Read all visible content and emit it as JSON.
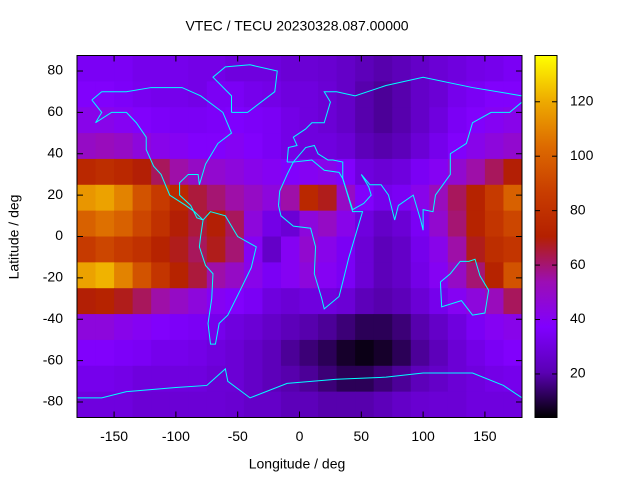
{
  "chart_data": {
    "type": "heatmap",
    "title": "VTEC / TECU 20230328.087.00000",
    "xlabel": "Longitude / deg",
    "ylabel": "Latitude / deg",
    "xlim": [
      -180,
      180
    ],
    "ylim": [
      -87.5,
      87.5
    ],
    "xticks": [
      -150,
      -100,
      -50,
      0,
      50,
      100,
      150
    ],
    "yticks": [
      -80,
      -60,
      -40,
      -20,
      0,
      20,
      40,
      60,
      80
    ],
    "clim": [
      4,
      137
    ],
    "cticks": [
      20,
      40,
      60,
      80,
      100,
      120
    ],
    "colormap": [
      "#000000",
      "#5a00b4",
      "#8000ff",
      "#9c0eb4",
      "#b42000",
      "#c93e00",
      "#dd6b00",
      "#eeab00",
      "#ffff00"
    ],
    "x": [
      -172.5,
      -157.5,
      -142.5,
      -127.5,
      -112.5,
      -97.5,
      -82.5,
      -67.5,
      -52.5,
      -37.5,
      -22.5,
      -7.5,
      7.5,
      22.5,
      37.5,
      52.5,
      67.5,
      82.5,
      97.5,
      112.5,
      127.5,
      142.5,
      157.5,
      172.5
    ],
    "y": [
      81.25,
      68.75,
      56.25,
      43.75,
      31.25,
      18.75,
      6.25,
      -6.25,
      -18.75,
      -31.25,
      -43.75,
      -56.25,
      -68.75,
      -81.25
    ],
    "z": [
      [
        35,
        35,
        35,
        33,
        33,
        33,
        32,
        32,
        30,
        30,
        30,
        28,
        28,
        27,
        25,
        22,
        20,
        22,
        25,
        28,
        30,
        32,
        33,
        35
      ],
      [
        38,
        38,
        36,
        34,
        33,
        33,
        32,
        35,
        35,
        33,
        32,
        30,
        30,
        28,
        25,
        20,
        18,
        20,
        25,
        28,
        33,
        35,
        38,
        38
      ],
      [
        42,
        42,
        40,
        38,
        36,
        35,
        35,
        36,
        37,
        36,
        35,
        32,
        30,
        28,
        25,
        20,
        18,
        20,
        25,
        30,
        35,
        38,
        40,
        42
      ],
      [
        50,
        52,
        50,
        45,
        42,
        40,
        38,
        38,
        40,
        38,
        35,
        32,
        30,
        30,
        28,
        22,
        20,
        22,
        28,
        33,
        38,
        42,
        45,
        48
      ],
      [
        75,
        78,
        75,
        70,
        62,
        55,
        50,
        48,
        45,
        42,
        40,
        38,
        40,
        42,
        38,
        30,
        28,
        30,
        35,
        40,
        48,
        55,
        62,
        70
      ],
      [
        115,
        118,
        110,
        95,
        85,
        75,
        65,
        60,
        55,
        50,
        45,
        55,
        75,
        68,
        50,
        38,
        33,
        35,
        42,
        52,
        62,
        72,
        85,
        100
      ],
      [
        100,
        105,
        100,
        90,
        80,
        70,
        65,
        70,
        62,
        45,
        32,
        28,
        45,
        50,
        42,
        30,
        25,
        28,
        35,
        48,
        60,
        72,
        82,
        90
      ],
      [
        85,
        90,
        85,
        80,
        72,
        68,
        62,
        68,
        60,
        40,
        25,
        40,
        48,
        42,
        35,
        28,
        22,
        25,
        33,
        42,
        55,
        68,
        78,
        82
      ],
      [
        118,
        122,
        110,
        95,
        82,
        72,
        65,
        55,
        50,
        42,
        35,
        40,
        45,
        40,
        35,
        28,
        22,
        25,
        32,
        40,
        50,
        60,
        72,
        95
      ],
      [
        70,
        72,
        68,
        62,
        55,
        50,
        45,
        40,
        38,
        35,
        30,
        28,
        30,
        30,
        28,
        22,
        20,
        22,
        28,
        33,
        40,
        45,
        52,
        62
      ],
      [
        45,
        45,
        42,
        40,
        38,
        36,
        35,
        33,
        30,
        28,
        25,
        22,
        20,
        18,
        15,
        12,
        12,
        15,
        20,
        25,
        30,
        35,
        40,
        42
      ],
      [
        38,
        38,
        36,
        35,
        33,
        33,
        32,
        30,
        28,
        25,
        22,
        18,
        15,
        12,
        8,
        6,
        8,
        12,
        18,
        22,
        28,
        32,
        35,
        38
      ],
      [
        33,
        33,
        32,
        30,
        30,
        30,
        30,
        28,
        28,
        25,
        22,
        20,
        18,
        15,
        12,
        12,
        15,
        18,
        22,
        25,
        28,
        30,
        32,
        33
      ],
      [
        30,
        30,
        30,
        28,
        28,
        28,
        28,
        28,
        27,
        25,
        25,
        22,
        22,
        20,
        20,
        20,
        22,
        25,
        27,
        28,
        28,
        30,
        30,
        30
      ]
    ]
  }
}
